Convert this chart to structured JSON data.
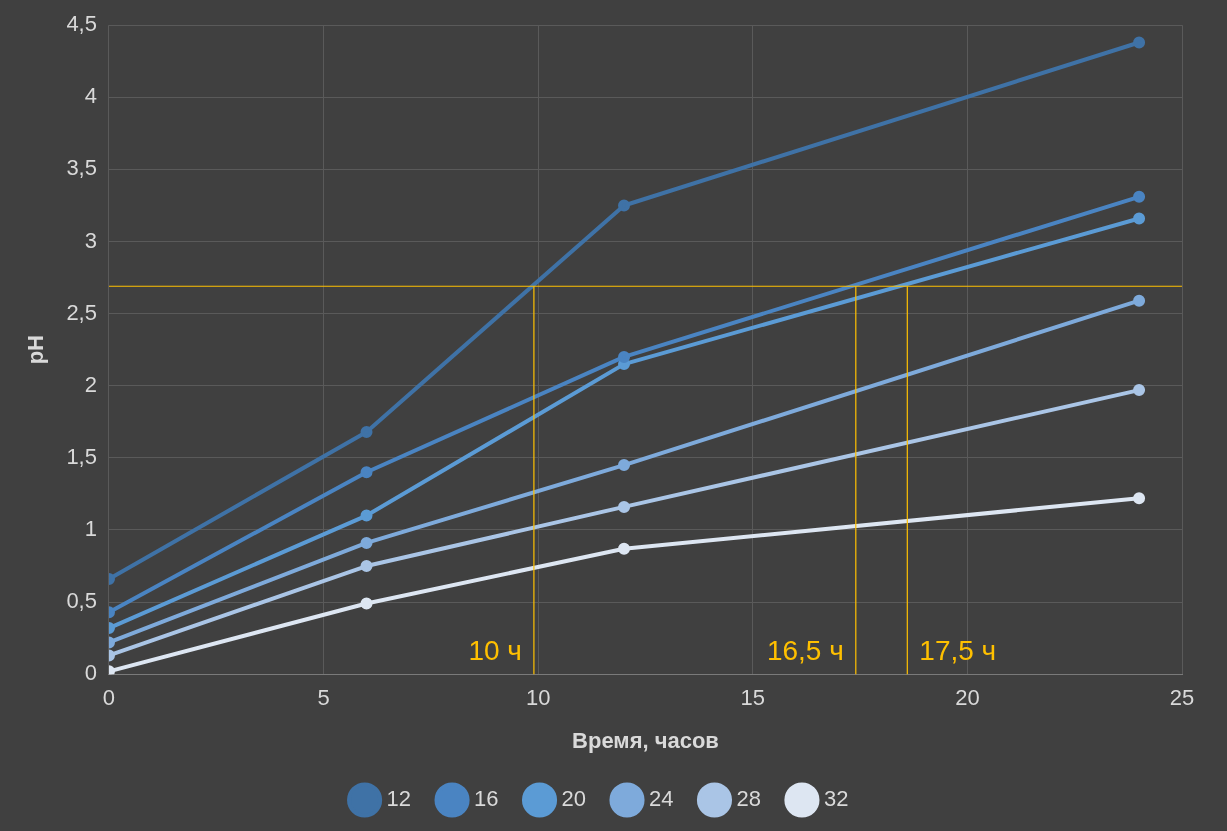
{
  "chart_data": {
    "type": "line",
    "xlabel": "Время, часов",
    "ylabel": "pH",
    "x": [
      0,
      6,
      12,
      24
    ],
    "series": [
      {
        "name": "12",
        "color": "#3f72a6",
        "values": [
          0.66,
          1.68,
          3.25,
          4.38
        ]
      },
      {
        "name": "16",
        "color": "#4a84c2",
        "values": [
          0.43,
          1.4,
          2.2,
          3.31
        ]
      },
      {
        "name": "20",
        "color": "#5b9bd5",
        "values": [
          0.32,
          1.1,
          2.15,
          3.16
        ]
      },
      {
        "name": "24",
        "color": "#7eaadb",
        "values": [
          0.22,
          0.91,
          1.45,
          2.59
        ]
      },
      {
        "name": "28",
        "color": "#aac5e6",
        "values": [
          0.13,
          0.75,
          1.16,
          1.97
        ]
      },
      {
        "name": "32",
        "color": "#dde6f2",
        "values": [
          0.02,
          0.49,
          0.87,
          1.22
        ]
      }
    ],
    "xlim": [
      0,
      25
    ],
    "xticks": [
      0,
      5,
      10,
      15,
      20,
      25
    ],
    "ylim": [
      0,
      4.5
    ],
    "yticks": [
      0,
      {
        "value": 0.5,
        "label": "0,5"
      },
      1,
      {
        "value": 1.5,
        "label": "1,5"
      },
      2,
      {
        "value": 2.5,
        "label": "2,5"
      },
      3,
      {
        "value": 3.5,
        "label": "3,5"
      },
      4,
      {
        "value": 4.5,
        "label": "4,5"
      }
    ],
    "ref_lines": [
      {
        "axis": "y",
        "value": 2.69,
        "color": "#ffc000"
      },
      {
        "axis": "x",
        "value": 9.9,
        "label": "10 ч",
        "color": "#ffc000"
      },
      {
        "axis": "x",
        "value": 17.4,
        "label": "16,5 ч",
        "color": "#ffc000"
      },
      {
        "axis": "x",
        "value": 18.6,
        "label": "17,5 ч",
        "color": "#ffc000"
      }
    ],
    "grid": true,
    "legend": "bottom",
    "marker": "circle",
    "line_style": "solid"
  }
}
